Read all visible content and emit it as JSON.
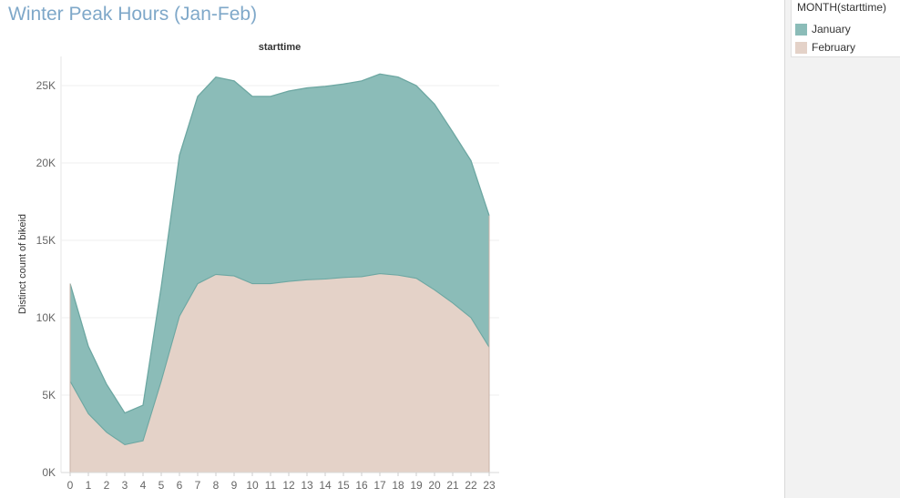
{
  "title": "Winter Peak Hours (Jan-Feb)",
  "legend": {
    "title": "MONTH(starttime)",
    "items": [
      {
        "label": "January",
        "color": "#8bbcb8"
      },
      {
        "label": "February",
        "color": "#e4d2c8"
      }
    ]
  },
  "chart_data": {
    "type": "area",
    "stacked": true,
    "title": "starttime",
    "xlabel": "starttime",
    "ylabel": "Distinct count of bikeid",
    "x": [
      0,
      1,
      2,
      3,
      4,
      5,
      6,
      7,
      8,
      9,
      10,
      11,
      12,
      13,
      14,
      15,
      16,
      17,
      18,
      19,
      20,
      21,
      22,
      23
    ],
    "ylim": [
      0,
      25000
    ],
    "yticks": [
      0,
      5000,
      10000,
      15000,
      20000,
      25000
    ],
    "ytick_labels": [
      "0K",
      "5K",
      "10K",
      "15K",
      "20K",
      "25K"
    ],
    "grid": true,
    "legend_position": "top-right",
    "series": [
      {
        "name": "February",
        "color": "#e4d2c8",
        "values": [
          5900,
          3800,
          2600,
          1800,
          2050,
          5900,
          10100,
          12200,
          12800,
          12700,
          12200,
          12200,
          12350,
          12450,
          12500,
          12600,
          12650,
          12850,
          12750,
          12550,
          11800,
          10950,
          10000,
          8100
        ]
      },
      {
        "name": "January",
        "color": "#8bbcb8",
        "values": [
          6300,
          4350,
          3100,
          2050,
          2300,
          6100,
          10400,
          12100,
          12750,
          12600,
          12100,
          12100,
          12300,
          12400,
          12450,
          12500,
          12650,
          12900,
          12800,
          12450,
          12000,
          11050,
          10150,
          8500
        ]
      }
    ]
  }
}
